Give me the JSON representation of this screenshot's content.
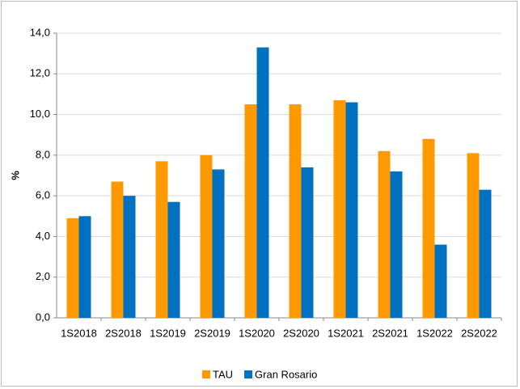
{
  "chart_data": {
    "type": "bar",
    "y_label": "%",
    "categories": [
      "1S2018",
      "2S2018",
      "1S2019",
      "2S2019",
      "1S2020",
      "2S2020",
      "1S2021",
      "2S2021",
      "1S2022",
      "2S2022"
    ],
    "series": [
      {
        "name": "TAU",
        "color": "#ff9900",
        "values": [
          4.9,
          6.7,
          7.7,
          8.0,
          10.5,
          10.5,
          10.7,
          8.2,
          8.8,
          8.1
        ]
      },
      {
        "name": "Gran Rosario",
        "color": "#0070c0",
        "values": [
          5.0,
          6.0,
          5.7,
          7.3,
          13.3,
          7.4,
          10.6,
          7.2,
          3.6,
          6.3
        ]
      }
    ],
    "ylim": [
      0,
      14
    ],
    "yticks": [
      {
        "value": 0,
        "label": "0,0"
      },
      {
        "value": 2,
        "label": "2,0"
      },
      {
        "value": 4,
        "label": "4,0"
      },
      {
        "value": 6,
        "label": "6,0"
      },
      {
        "value": 8,
        "label": "8,0"
      },
      {
        "value": 10,
        "label": "10,0"
      },
      {
        "value": 12,
        "label": "12,0"
      },
      {
        "value": 14,
        "label": "14,0"
      }
    ],
    "grid": true,
    "legend": "bottom"
  }
}
